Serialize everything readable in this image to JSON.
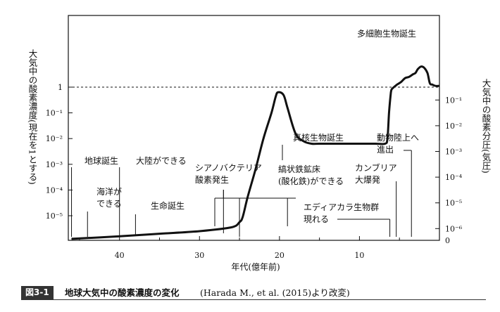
{
  "chart_data": {
    "type": "line",
    "xlabel": "年代(億年前)",
    "ylabel_left": "大気中の酸素濃度(現在を1とする)",
    "ylabel_right": "大気中の酸素分圧(気圧)",
    "x_reversed": true,
    "xlim": [
      46.4,
      0
    ],
    "x_ticks": [
      40,
      30,
      20,
      10
    ],
    "left_ticks": [
      {
        "level": 5,
        "label": "1"
      },
      {
        "level": 4,
        "label": "10⁻¹"
      },
      {
        "level": 3,
        "label": "10⁻²"
      },
      {
        "level": 2,
        "label": "10⁻³"
      },
      {
        "level": 1,
        "label": "10⁻⁴"
      },
      {
        "level": 0,
        "label": "10⁻⁵"
      }
    ],
    "right_ticks": [
      {
        "level": 4.5,
        "label": "10⁻¹"
      },
      {
        "level": 3.5,
        "label": "10⁻²"
      },
      {
        "level": 2.5,
        "label": "10⁻³"
      },
      {
        "level": 1.5,
        "label": "10⁻⁴"
      },
      {
        "level": 0.5,
        "label": "10⁻⁵"
      },
      {
        "level": -0.5,
        "label": "10⁻⁶"
      },
      {
        "level": -1.1,
        "label": "0"
      }
    ],
    "reference_line": {
      "level": 5,
      "style": "dashed"
    },
    "series": [
      {
        "x": [
          46.0,
          40.0,
          35.0,
          30.0,
          26.0,
          25.0,
          24.6,
          24.0,
          23.0,
          22.0,
          21.0,
          20.5,
          20.2,
          19.5,
          19.0,
          18.0,
          17.0,
          16.0,
          15.0,
          13.0,
          10.0,
          8.0,
          6.8,
          6.5,
          6.3,
          6.1,
          6.0,
          5.7,
          5.5,
          5.3,
          4.8,
          4.3,
          3.8,
          3.3,
          3.0,
          2.7,
          2.3,
          1.9,
          1.5,
          1.2,
          0.9,
          0.5,
          0
        ],
        "y": [
          -0.9,
          -0.8,
          -0.7,
          -0.6,
          -0.45,
          -0.25,
          -0.05,
          0.7,
          1.8,
          3.0,
          4.0,
          4.6,
          4.8,
          4.7,
          4.2,
          3.2,
          2.9,
          2.8,
          2.8,
          2.8,
          2.8,
          2.8,
          2.8,
          3.0,
          4.0,
          4.7,
          4.9,
          5.0,
          5.05,
          5.1,
          5.2,
          5.35,
          5.4,
          5.5,
          5.55,
          5.7,
          5.8,
          5.75,
          5.55,
          5.15,
          5.1,
          5.05,
          5.05
        ]
      }
    ],
    "annotations": [
      {
        "lines": [
          "地球誕生"
        ],
        "x": 46.0
      },
      {
        "lines": [
          "海洋が",
          "できる"
        ],
        "x": 44.0
      },
      {
        "lines": [
          "大陸ができる"
        ],
        "x": 40.0
      },
      {
        "lines": [
          "生命誕生"
        ],
        "x": 38.0
      },
      {
        "lines": [
          "シアノバクテリア",
          "酸素発生"
        ],
        "x": 27.0
      },
      {
        "lines": [
          "真核生物誕生"
        ],
        "x": 21.0
      },
      {
        "lines": [
          "縞状鉄鉱床",
          "(酸化鉄)ができる"
        ],
        "x_range": [
          25.0,
          19.0
        ]
      },
      {
        "lines": [
          "カンブリア",
          "大爆発"
        ],
        "x": 5.4
      },
      {
        "lines": [
          "エディアカラ生物群",
          "現れる"
        ],
        "x": 6.2
      },
      {
        "lines": [
          "動物陸上へ",
          "進出"
        ],
        "x": 3.5
      },
      {
        "lines": [
          "多細胞生物誕生"
        ],
        "x": 2.0
      }
    ]
  },
  "caption": {
    "label": "図3-1",
    "title": "地球大気中の酸素濃度の変化",
    "source": "(Harada M., et al. (2015)より改変)"
  }
}
